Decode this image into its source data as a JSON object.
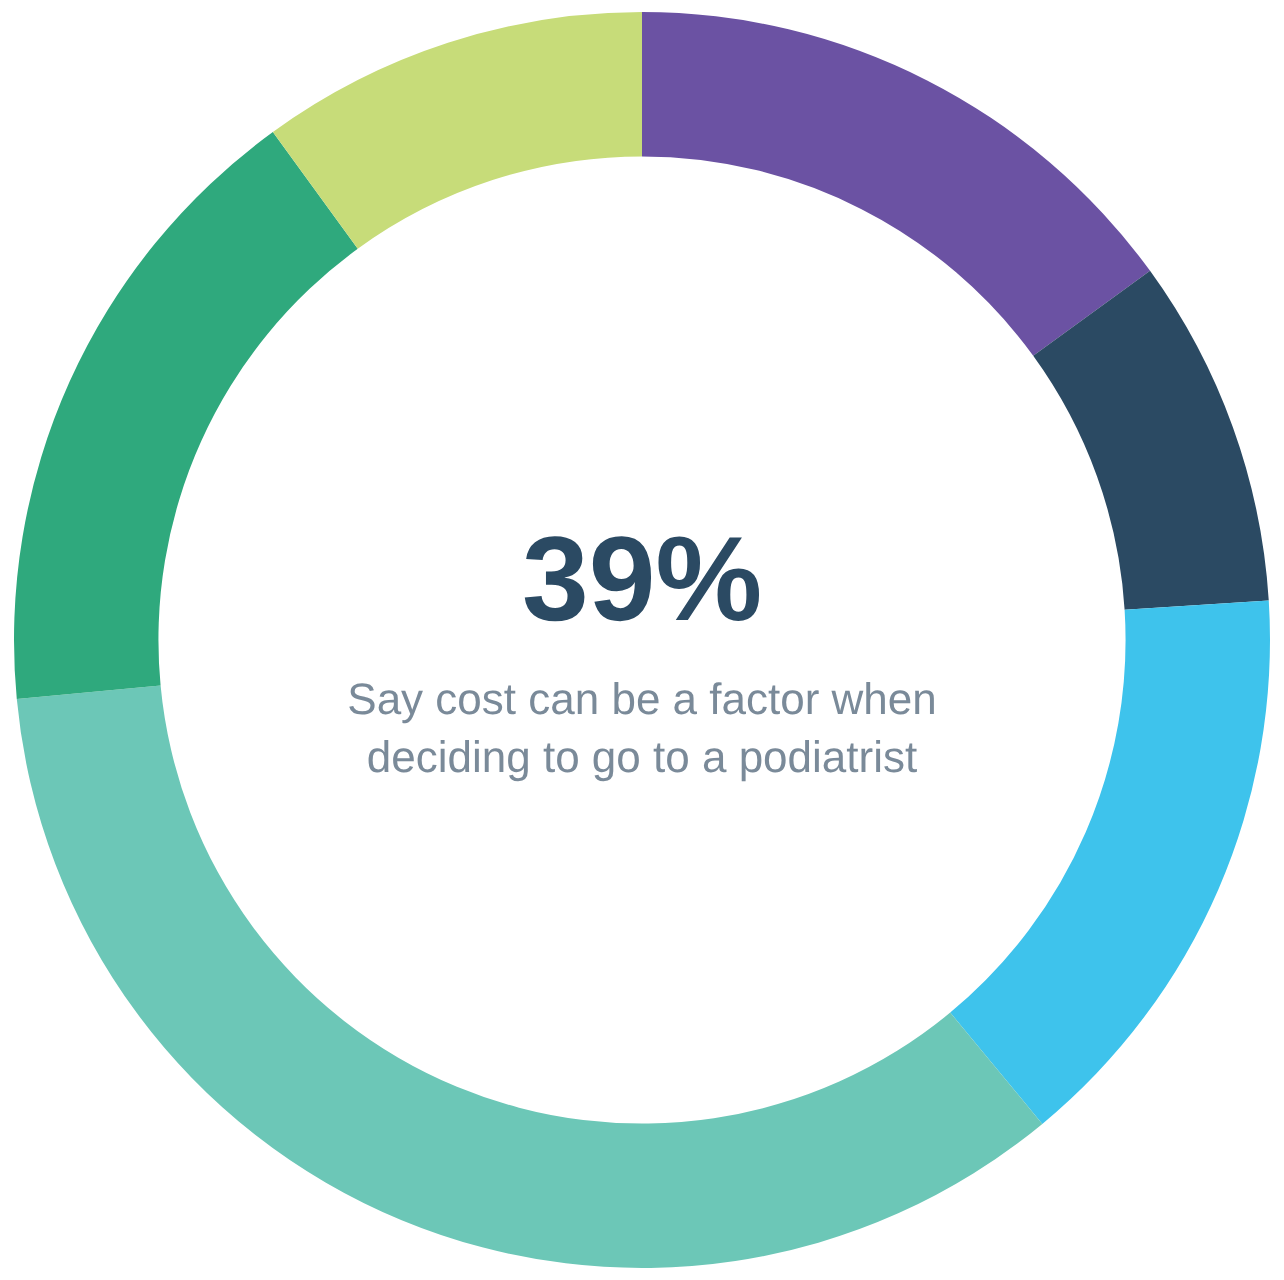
{
  "chart_data": {
    "type": "donut",
    "title": "39%",
    "subtitle": "Say cost can be a factor when deciding to go to a podiatrist",
    "categories": [
      null,
      null,
      null,
      null,
      null,
      null
    ],
    "values": [
      15,
      9,
      15,
      34.5,
      16.5,
      10
    ],
    "colors": [
      "#6b52a3",
      "#2b4a63",
      "#3ec3ec",
      "#6cc7b7",
      "#2fa97d",
      "#c7dc79"
    ]
  }
}
